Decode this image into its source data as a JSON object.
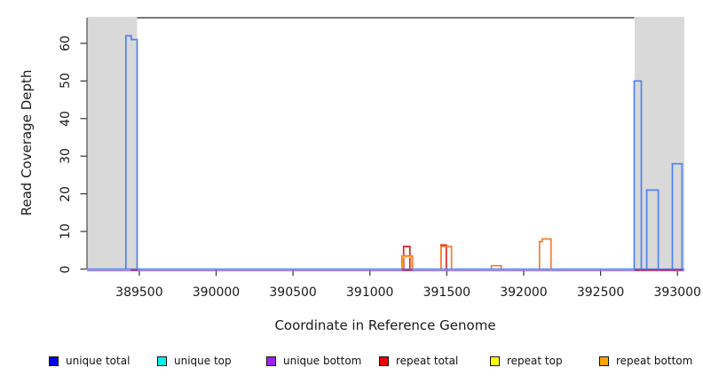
{
  "chart_data": {
    "type": "line",
    "subtype": "step-coverage-profile",
    "title": "",
    "xlabel": "Coordinate in Reference Genome",
    "ylabel": "Read Coverage Depth",
    "xlim": [
      389160,
      393045
    ],
    "ylim": [
      0,
      66.8
    ],
    "x_ticks": [
      389500,
      390000,
      390500,
      391000,
      391500,
      392000,
      392500,
      393000
    ],
    "y_ticks": [
      0,
      10,
      20,
      30,
      40,
      50,
      60
    ],
    "grid": false,
    "legend_position": "bottom",
    "shaded_regions": [
      {
        "x1": 389160,
        "x2": 389486,
        "color": "#d9d9d9"
      },
      {
        "x1": 392719,
        "x2": 393045,
        "color": "#d9d9d9"
      }
    ],
    "series": [
      {
        "name": "repeat total",
        "color": "#e12120",
        "peaks": [
          [
            [
              391219,
              391260,
              6.0
            ]
          ],
          [
            [
              391462,
              391497,
              6.4
            ]
          ]
        ]
      },
      {
        "name": "repeat top",
        "color": "#ffe133",
        "peaks": [
          [
            [
              391213,
              391271,
              3.2
            ]
          ]
        ]
      },
      {
        "name": "repeat bottom",
        "color": "#f47d2f",
        "peaks": [
          [
            [
              391208,
              391277,
              3.5
            ]
          ],
          [
            [
              391462,
              391531,
              6.0
            ]
          ],
          [
            [
              391790,
              391854,
              0.9
            ]
          ],
          [
            [
              392103,
              392121,
              7.3
            ],
            [
              392121,
              392178,
              8.0
            ]
          ]
        ]
      },
      {
        "name": "unique total",
        "color": "#4d82f3",
        "peaks": [
          [
            [
              389413,
              389448,
              62
            ],
            [
              389448,
              389486,
              61
            ]
          ],
          [
            [
              392719,
              392765,
              50
            ]
          ],
          [
            [
              392800,
              392875,
              21
            ]
          ],
          [
            [
              392967,
              393030,
              28
            ]
          ]
        ]
      }
    ],
    "baseline_lines": [
      {
        "name": "unique total zero line",
        "color": "#4d82f3",
        "offset": 0
      },
      {
        "name": "unique bottom zero line",
        "color": "#9673e8",
        "offset": 1.8
      }
    ],
    "baseline_segments": [
      {
        "name": "repeat total zero segments",
        "color": "#e12120",
        "offset": 0.9,
        "ranges": [
          [
            389445,
            389490
          ],
          [
            391208,
            391277
          ],
          [
            392719,
            393035
          ]
        ]
      }
    ],
    "legend": [
      {
        "label": "unique total",
        "color": "#0000ee"
      },
      {
        "label": "unique top",
        "color": "#00eeee"
      },
      {
        "label": "unique bottom",
        "color": "#a020f0"
      },
      {
        "label": "repeat total",
        "color": "#ee0000"
      },
      {
        "label": "repeat top",
        "color": "#ffff00"
      },
      {
        "label": "repeat bottom",
        "color": "#ffa500"
      }
    ]
  }
}
